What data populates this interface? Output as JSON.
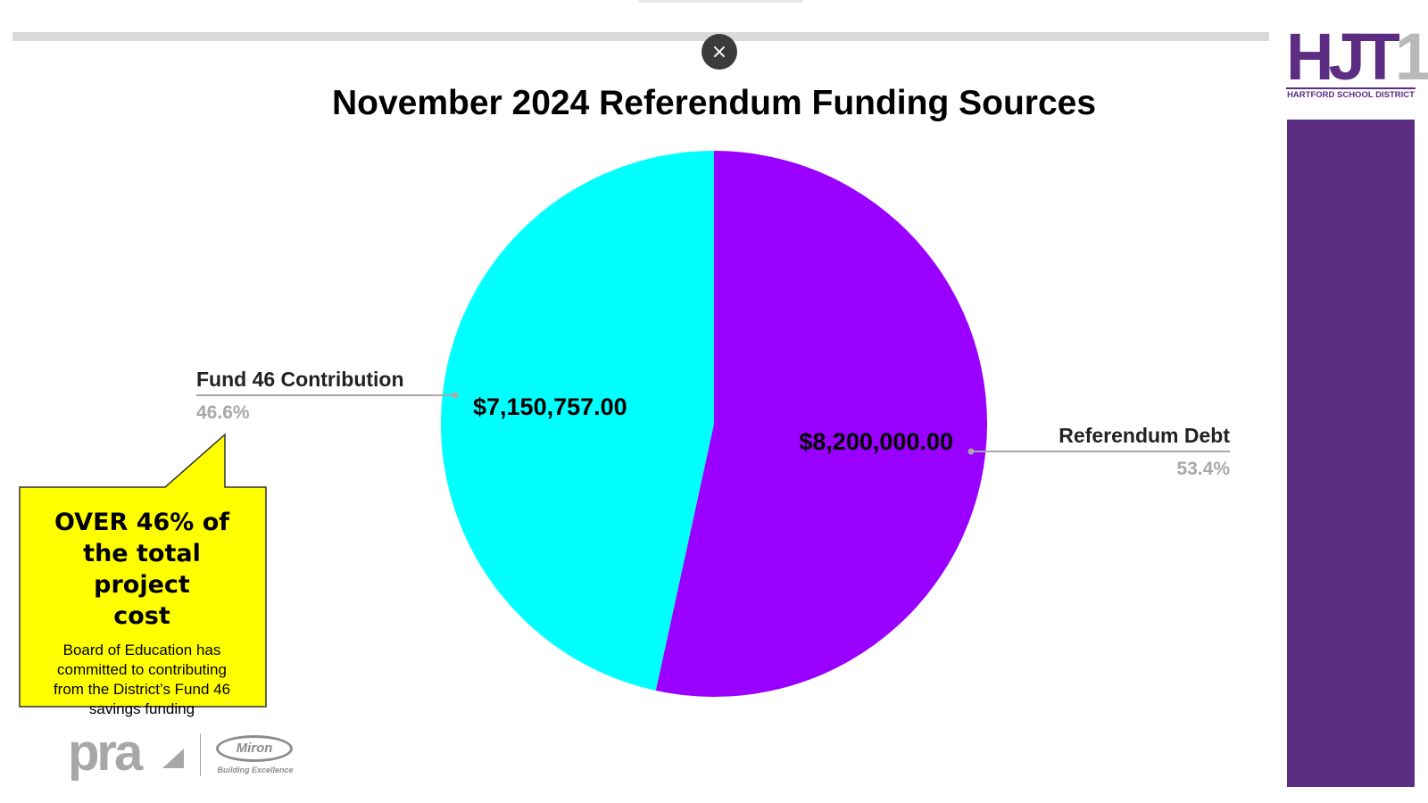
{
  "presentation": {
    "close_glyph": "×"
  },
  "branding": {
    "logo_text_purple": "HJT",
    "logo_text_gray": "1",
    "logo_subtitle": "HARTFORD SCHOOL DISTRICT",
    "footer_left_logo": "pra",
    "footer_right_logo": "Miron",
    "footer_right_tagline": "Building Excellence",
    "brand_purple": "#5c2d82"
  },
  "callout": {
    "headline_lines": [
      "OVER 46% of",
      "the total project",
      "cost"
    ],
    "body_lines": [
      "Board of Education has",
      "committed to contributing",
      "from the District’s Fund 46",
      "savings funding"
    ],
    "fill_color": "#ffff00",
    "border_color": "#333333"
  },
  "chart_data": {
    "type": "pie",
    "title": "November 2024 Referendum Funding Sources",
    "slices": [
      {
        "label": "Referendum Debt",
        "value": 8200000.0,
        "value_label": "$8,200,000.00",
        "percent_label": "53.4%",
        "color": "#9900ff"
      },
      {
        "label": "Fund 46 Contribution",
        "value": 7150757.0,
        "value_label": "$7,150,757.00",
        "percent_label": "46.6%",
        "color": "#00ffff"
      }
    ],
    "start_angle": "12 o'clock",
    "direction": "clockwise",
    "label_style": "callout lines with label and percent outside the pie"
  }
}
